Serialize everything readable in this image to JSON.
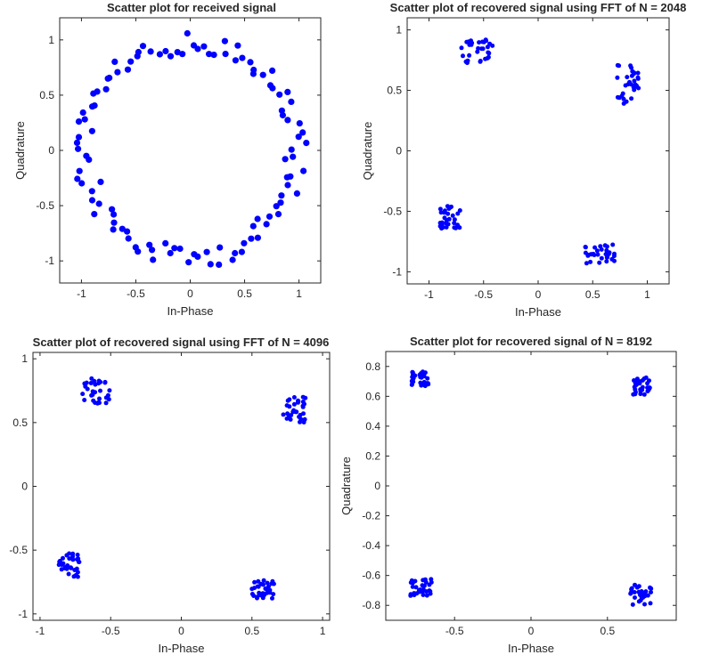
{
  "chart_data": [
    {
      "type": "scatter",
      "title": "Scatter plot for received signal",
      "xlabel": "In-Phase",
      "ylabel": "Quadrature",
      "xlim": [
        -1.2,
        1.2
      ],
      "ylim": [
        -1.2,
        1.2
      ],
      "xticks": [
        -1,
        -0.5,
        0,
        0.5,
        1
      ],
      "xtick_labels": [
        "-1",
        "-0.5",
        "0",
        "0.5",
        "1"
      ],
      "yticks": [
        -1,
        -0.5,
        0,
        0.5,
        1
      ],
      "ytick_labels": [
        "-1",
        "-0.5",
        "0",
        "0.5",
        "1"
      ],
      "marker_color": "#0000ff",
      "marker": "large-dot",
      "pattern": "ring",
      "series": [
        {
          "name": "received",
          "points": []
        }
      ]
    },
    {
      "type": "scatter",
      "title": "Scatter plot of recovered signal using FFT of N = 2048",
      "xlabel": "In-Phase",
      "ylabel": "Quadrature",
      "xlim": [
        -1.2,
        1.2
      ],
      "ylim": [
        -1.1,
        1.1
      ],
      "xticks": [
        -1,
        -0.5,
        0,
        0.5,
        1
      ],
      "xtick_labels": [
        "-1",
        "-0.5",
        "0",
        "0.5",
        "1"
      ],
      "yticks": [
        -1,
        -0.5,
        0,
        0.5,
        1
      ],
      "ytick_labels": [
        "-1",
        "-0.5",
        "0",
        "0.5",
        "1"
      ],
      "marker_color": "#0000ff",
      "marker": "dot",
      "pattern": "clusters",
      "clusters": [
        {
          "cx": -0.55,
          "cy": 0.82,
          "sx": 0.16,
          "sy": 0.1
        },
        {
          "cx": 0.82,
          "cy": 0.55,
          "sx": 0.1,
          "sy": 0.16
        },
        {
          "cx": -0.8,
          "cy": -0.55,
          "sx": 0.1,
          "sy": 0.1
        },
        {
          "cx": 0.55,
          "cy": -0.85,
          "sx": 0.16,
          "sy": 0.08
        }
      ],
      "series": [
        {
          "name": "recovered",
          "points": []
        }
      ]
    },
    {
      "type": "scatter",
      "title": "Scatter plot of recovered signal using FFT of N = 4096",
      "xlabel": "In-Phase",
      "ylabel": "Quadrature",
      "xlim": [
        -1.05,
        1.05
      ],
      "ylim": [
        -1.05,
        1.05
      ],
      "xticks": [
        -1,
        -0.5,
        0,
        0.5,
        1
      ],
      "xtick_labels": [
        "-1",
        "-0.5",
        "0",
        "0.5",
        "1"
      ],
      "yticks": [
        -1,
        -0.5,
        0,
        0.5,
        1
      ],
      "ytick_labels": [
        "-1",
        "-0.5",
        "0",
        "0.5",
        "1"
      ],
      "marker_color": "#0000ff",
      "marker": "dot",
      "pattern": "clusters",
      "clusters": [
        {
          "cx": -0.6,
          "cy": 0.75,
          "sx": 0.1,
          "sy": 0.1
        },
        {
          "cx": 0.8,
          "cy": 0.6,
          "sx": 0.08,
          "sy": 0.1
        },
        {
          "cx": -0.8,
          "cy": -0.62,
          "sx": 0.08,
          "sy": 0.1
        },
        {
          "cx": 0.58,
          "cy": -0.8,
          "sx": 0.08,
          "sy": 0.08
        }
      ],
      "series": [
        {
          "name": "recovered",
          "points": []
        }
      ]
    },
    {
      "type": "scatter",
      "title": "Scatter plot for recovered signal of N = 8192",
      "xlabel": "In-Phase",
      "ylabel": "Quadrature",
      "xlim": [
        -0.95,
        0.95
      ],
      "ylim": [
        -0.9,
        0.9
      ],
      "xticks": [
        -0.5,
        0,
        0.5
      ],
      "xtick_labels": [
        "-0.5",
        "0",
        "0.5"
      ],
      "yticks": [
        -0.8,
        -0.6,
        -0.4,
        -0.2,
        0,
        0.2,
        0.4,
        0.6,
        0.8
      ],
      "ytick_labels": [
        "-0.8",
        "-0.6",
        "-0.4",
        "-0.2",
        "0",
        "0.2",
        "0.4",
        "0.6",
        "0.8"
      ],
      "marker_color": "#0000ff",
      "marker": "dot",
      "pattern": "clusters",
      "clusters": [
        {
          "cx": -0.72,
          "cy": 0.72,
          "sx": 0.06,
          "sy": 0.05
        },
        {
          "cx": 0.72,
          "cy": 0.67,
          "sx": 0.06,
          "sy": 0.06
        },
        {
          "cx": -0.72,
          "cy": -0.68,
          "sx": 0.07,
          "sy": 0.06
        },
        {
          "cx": 0.72,
          "cy": -0.73,
          "sx": 0.07,
          "sy": 0.07
        }
      ],
      "series": [
        {
          "name": "recovered",
          "points": []
        }
      ]
    }
  ]
}
